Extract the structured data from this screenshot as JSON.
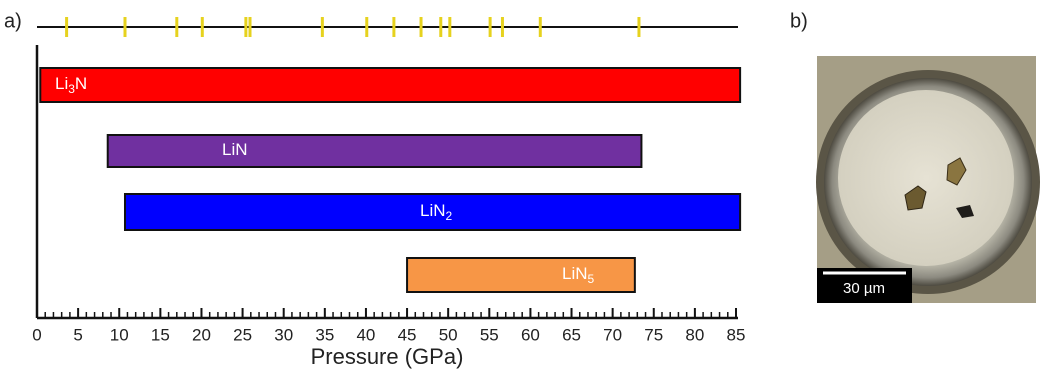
{
  "chart_data": {
    "type": "range_bar",
    "panel_label": "a)",
    "x_label": "Pressure (GPa)",
    "xlim": [
      0,
      85
    ],
    "xticks": [
      0,
      5,
      10,
      15,
      20,
      25,
      30,
      35,
      40,
      45,
      50,
      55,
      60,
      65,
      70,
      75,
      80,
      85
    ],
    "xminorticks": [
      0,
      1,
      2,
      3,
      4,
      5,
      6,
      7,
      8,
      9,
      10,
      11,
      12,
      13,
      14,
      15,
      16,
      17,
      18,
      19,
      20,
      21,
      22,
      23,
      24,
      25,
      26,
      27,
      28,
      29,
      30,
      31,
      32,
      33,
      34,
      35,
      36,
      37,
      38,
      39,
      40,
      41,
      42,
      43,
      44,
      45,
      46,
      47,
      48,
      49,
      50,
      51,
      52,
      53,
      54,
      55,
      56,
      57,
      58,
      59,
      60,
      61,
      62,
      63,
      64,
      65,
      66,
      67,
      68,
      69,
      70,
      71,
      72,
      73,
      74,
      75,
      76,
      77,
      78,
      79,
      80,
      81,
      82,
      83,
      84,
      85
    ],
    "top_marks": {
      "color": "#e6d21e",
      "values": [
        3.6,
        10.7,
        17.0,
        20.1,
        25.4,
        25.9,
        34.7,
        40.1,
        43.4,
        46.7,
        49.1,
        50.2,
        55.1,
        56.6,
        61.2,
        73.2
      ]
    },
    "series": [
      {
        "label_parts": [
          {
            "text": "Li"
          },
          {
            "text": "3",
            "sub": true
          },
          {
            "text": "N"
          }
        ],
        "color": "#ff0000",
        "start": 0.4,
        "end": 85.5
      },
      {
        "label_parts": [
          {
            "text": "LiN"
          }
        ],
        "color": "#7030a0",
        "start": 8.6,
        "end": 73.5
      },
      {
        "label_parts": [
          {
            "text": "LiN"
          },
          {
            "text": "2",
            "sub": true
          }
        ],
        "color": "#0000ff",
        "start": 10.7,
        "end": 85.5
      },
      {
        "label_parts": [
          {
            "text": "LiN"
          },
          {
            "text": "5",
            "sub": true
          }
        ],
        "color": "#f79646",
        "start": 45.0,
        "end": 72.7
      }
    ]
  },
  "image_panel": {
    "panel_label": "b)",
    "scale_bar": "30 µm"
  }
}
